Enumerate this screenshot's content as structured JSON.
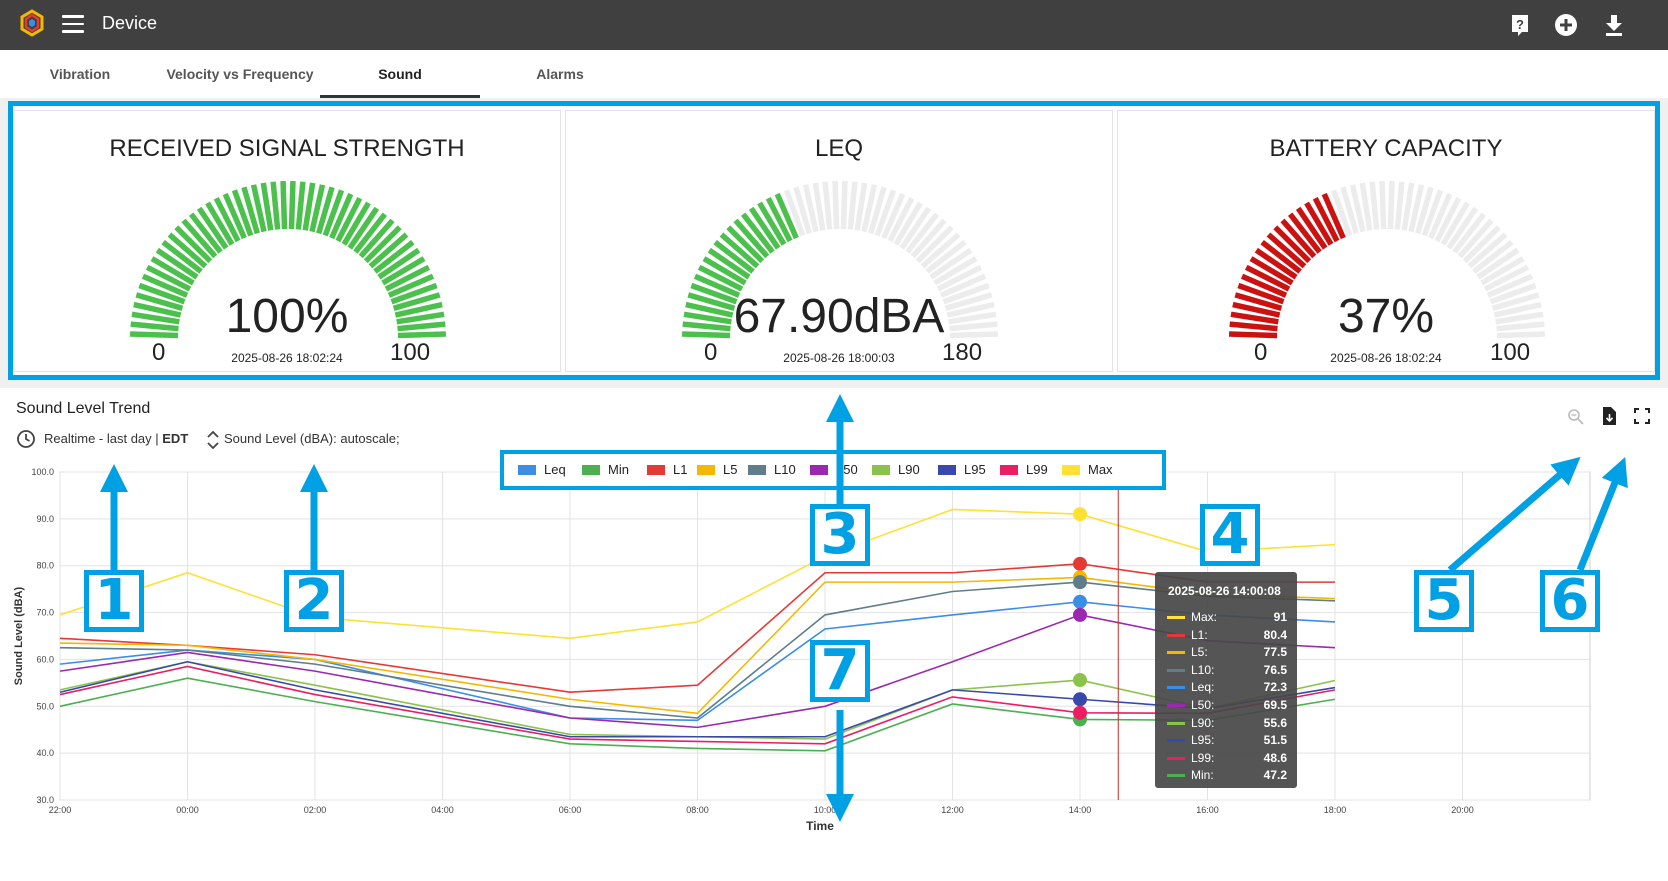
{
  "header": {
    "title": "Device",
    "icons": [
      "help-icon",
      "add-circle-icon",
      "download-icon"
    ]
  },
  "tabs": [
    {
      "label": "Vibration",
      "active": false
    },
    {
      "label": "Velocity vs Frequency",
      "active": false
    },
    {
      "label": "Sound",
      "active": true
    },
    {
      "label": "Alarms",
      "active": false
    }
  ],
  "gauges": [
    {
      "title": "RECEIVED SIGNAL STRENGTH",
      "value_text": "100%",
      "min": "0",
      "max": "100",
      "fraction": 1.0,
      "timestamp": "2025-08-26 18:02:24",
      "color": "#4cc04c"
    },
    {
      "title": "LEQ",
      "value_text": "67.90dBA",
      "min": "0",
      "max": "180",
      "fraction": 0.377,
      "timestamp": "2025-08-26 18:00:03",
      "color": "#4cc04c"
    },
    {
      "title": "BATTERY CAPACITY",
      "value_text": "37%",
      "min": "0",
      "max": "100",
      "fraction": 0.37,
      "timestamp": "2025-08-26 18:02:24",
      "color": "#cc1111"
    }
  ],
  "trend": {
    "title": "Sound Level Trend",
    "time_range": "Realtime - last day",
    "timezone": "EDT",
    "scale": "Sound Level (dBA): autoscale;"
  },
  "chart_data": {
    "type": "line",
    "xlabel": "Time",
    "ylabel": "Sound Level (dBA)",
    "x_ticks": [
      "22:00",
      "00:00",
      "02:00",
      "04:00",
      "06:00",
      "08:00",
      "10:00",
      "12:00",
      "14:00",
      "16:00",
      "18:00",
      "20:00"
    ],
    "y_ticks": [
      "30.0",
      "40.0",
      "50.0",
      "60.0",
      "70.0",
      "80.0",
      "90.0",
      "100.0"
    ],
    "ylim": [
      30,
      100
    ],
    "x_hours": [
      -2,
      0,
      2,
      6,
      8,
      10,
      12,
      14,
      16,
      18
    ],
    "series": [
      {
        "name": "Leq",
        "color": "#3a8ee6",
        "values": [
          59,
          62,
          60,
          47.5,
          47,
          66.5,
          69.5,
          72.3,
          69.5,
          68
        ]
      },
      {
        "name": "Min",
        "color": "#4caf50",
        "values": [
          50,
          56,
          51,
          42,
          41,
          40.5,
          50.5,
          47.2,
          47,
          51.5
        ]
      },
      {
        "name": "L1",
        "color": "#e53935",
        "values": [
          64.5,
          63,
          61,
          53,
          54.5,
          78.5,
          78.5,
          80.4,
          76.5,
          76.5
        ]
      },
      {
        "name": "L5",
        "color": "#f5b800",
        "values": [
          63.5,
          63,
          60,
          51.5,
          48.5,
          76.5,
          76.5,
          77.5,
          74,
          73
        ]
      },
      {
        "name": "L10",
        "color": "#607d8b",
        "values": [
          62.5,
          62,
          59,
          50,
          47.5,
          69.5,
          74.5,
          76.5,
          73.5,
          72.5
        ]
      },
      {
        "name": "L50",
        "color": "#9c27b0",
        "values": [
          57.5,
          61.5,
          57.5,
          47.5,
          45.5,
          50,
          59.5,
          69.5,
          64,
          62.5
        ]
      },
      {
        "name": "L90",
        "color": "#8bc34a",
        "values": [
          53.5,
          59.5,
          54.5,
          44,
          43.5,
          43,
          53.5,
          55.6,
          49.5,
          55.5
        ]
      },
      {
        "name": "L95",
        "color": "#3949ab",
        "values": [
          53,
          59.5,
          53.5,
          43.5,
          43.5,
          43.5,
          53.5,
          51.5,
          49.5,
          54
        ]
      },
      {
        "name": "L99",
        "color": "#e91e63",
        "values": [
          52.5,
          58.5,
          52.5,
          43,
          42.5,
          42,
          52,
          48.6,
          48.5,
          53.5
        ]
      },
      {
        "name": "Max",
        "color": "#ffe033",
        "values": [
          69.5,
          78.5,
          69,
          64.5,
          68,
          82,
          92,
          91,
          83,
          84.5
        ]
      }
    ],
    "hover_hour": 14.6,
    "tooltip": {
      "title": "2025-08-26 14:00:08",
      "rows": [
        {
          "label": "Max:",
          "value": "91",
          "color": "#ffe033"
        },
        {
          "label": "L1:",
          "value": "80.4",
          "color": "#e53935"
        },
        {
          "label": "L5:",
          "value": "77.5",
          "color": "#f5b800"
        },
        {
          "label": "L10:",
          "value": "76.5",
          "color": "#607d8b"
        },
        {
          "label": "Leq:",
          "value": "72.3",
          "color": "#3a8ee6"
        },
        {
          "label": "L50:",
          "value": "69.5",
          "color": "#9c27b0"
        },
        {
          "label": "L90:",
          "value": "55.6",
          "color": "#8bc34a"
        },
        {
          "label": "L95:",
          "value": "51.5",
          "color": "#3949ab"
        },
        {
          "label": "L99:",
          "value": "48.6",
          "color": "#e91e63"
        },
        {
          "label": "Min:",
          "value": "47.2",
          "color": "#4caf50"
        }
      ]
    }
  },
  "callouts": [
    "1",
    "2",
    "3",
    "4",
    "5",
    "6",
    "7"
  ]
}
